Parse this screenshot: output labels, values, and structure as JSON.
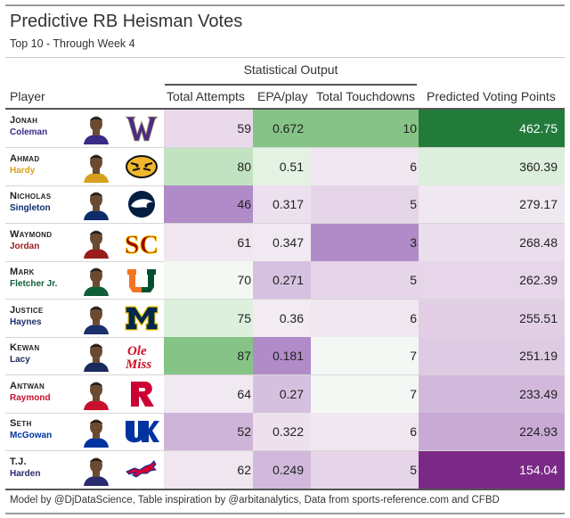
{
  "title": "Predictive RB Heisman Votes",
  "subtitle": "Top 10 - Through Week 4",
  "spanner": "Statistical Output",
  "columns": {
    "player": "Player",
    "attempts": "Total Attempts",
    "epa": "EPA/play",
    "tds": "Total Touchdowns",
    "points": "Predicted Voting Points"
  },
  "footer": "Model by @DjDataScience, Table inspiration by @arbitanalytics, Data from sports-reference.com and CFBD",
  "chart_data": {
    "type": "table",
    "rows": [
      {
        "first": "Jonah",
        "last": "Coleman",
        "name_color": "#3b2a86",
        "school_logo": "washington-w-logo",
        "attempts": "59",
        "epa": "0.672",
        "tds": "10",
        "points": "462.75",
        "bg": {
          "attempts": "#ead9ea",
          "epa": "#86c386",
          "tds": "#86c386",
          "points": "#237b3b"
        },
        "points_text": "#ffffff"
      },
      {
        "first": "Ahmad",
        "last": "Hardy",
        "name_color": "#d6a21e",
        "school_logo": "missouri-tiger-logo",
        "attempts": "80",
        "epa": "0.51",
        "tds": "6",
        "points": "360.39",
        "bg": {
          "attempts": "#c2e3c2",
          "epa": "#e3f2e3",
          "tds": "#f0e7f0",
          "points": "#dcefdc"
        },
        "points_text": "#222"
      },
      {
        "first": "Nicholas",
        "last": "Singleton",
        "name_color": "#0d2c6c",
        "school_logo": "penn-state-lion-logo",
        "attempts": "46",
        "epa": "0.317",
        "tds": "5",
        "points": "279.17",
        "bg": {
          "attempts": "#b08bc8",
          "epa": "#ece0ee",
          "tds": "#e6d5e8",
          "points": "#f0e8f0"
        },
        "points_text": "#222"
      },
      {
        "first": "Waymond",
        "last": "Jordan",
        "name_color": "#9a1c1c",
        "school_logo": "usc-sc-logo",
        "attempts": "61",
        "epa": "0.347",
        "tds": "3",
        "points": "268.48",
        "bg": {
          "attempts": "#efe6ef",
          "epa": "#f1e9f1",
          "tds": "#b08bc8",
          "points": "#ebdeec"
        },
        "points_text": "#222"
      },
      {
        "first": "Mark",
        "last": "Fletcher Jr.",
        "name_color": "#0e5e3a",
        "school_logo": "miami-u-logo",
        "attempts": "70",
        "epa": "0.271",
        "tds": "5",
        "points": "262.39",
        "bg": {
          "attempts": "#f3f8f3",
          "epa": "#d7c1e0",
          "tds": "#e6d5e8",
          "points": "#e7d6e9"
        },
        "points_text": "#222"
      },
      {
        "first": "Justice",
        "last": "Haynes",
        "name_color": "#1b2f6b",
        "school_logo": "michigan-m-logo",
        "attempts": "75",
        "epa": "0.36",
        "tds": "6",
        "points": "255.51",
        "bg": {
          "attempts": "#ddf0dd",
          "epa": "#f2ebf2",
          "tds": "#f0e7f0",
          "points": "#e2cfe6"
        },
        "points_text": "#222"
      },
      {
        "first": "Kewan",
        "last": "Lacy",
        "name_color": "#1a2a5c",
        "school_logo": "ole-miss-logo",
        "attempts": "87",
        "epa": "0.181",
        "tds": "7",
        "points": "251.19",
        "bg": {
          "attempts": "#86c386",
          "epa": "#b08bc8",
          "tds": "#f4f8f4",
          "points": "#decae3"
        },
        "points_text": "#222"
      },
      {
        "first": "Antwan",
        "last": "Raymond",
        "name_color": "#c8102e",
        "school_logo": "rutgers-r-logo",
        "attempts": "64",
        "epa": "0.27",
        "tds": "7",
        "points": "233.49",
        "bg": {
          "attempts": "#f1e9f1",
          "epa": "#d6c0df",
          "tds": "#f4f8f4",
          "points": "#d2b9dc"
        },
        "points_text": "#222"
      },
      {
        "first": "Seth",
        "last": "McGowan",
        "name_color": "#0033a0",
        "school_logo": "kentucky-uk-logo",
        "attempts": "52",
        "epa": "0.322",
        "tds": "6",
        "points": "224.93",
        "bg": {
          "attempts": "#cfb4d9",
          "epa": "#ede1ee",
          "tds": "#f0e7f0",
          "points": "#c8aad5"
        },
        "points_text": "#222"
      },
      {
        "first": "T.J.",
        "last": "Harden",
        "name_color": "#2a2a6e",
        "school_logo": "smu-mustang-logo",
        "attempts": "62",
        "epa": "0.249",
        "tds": "5",
        "points": "154.04",
        "bg": {
          "attempts": "#efe6ef",
          "epa": "#d2b9dc",
          "tds": "#e6d5e8",
          "points": "#7a2a86"
        },
        "points_text": "#ffffff"
      }
    ]
  }
}
